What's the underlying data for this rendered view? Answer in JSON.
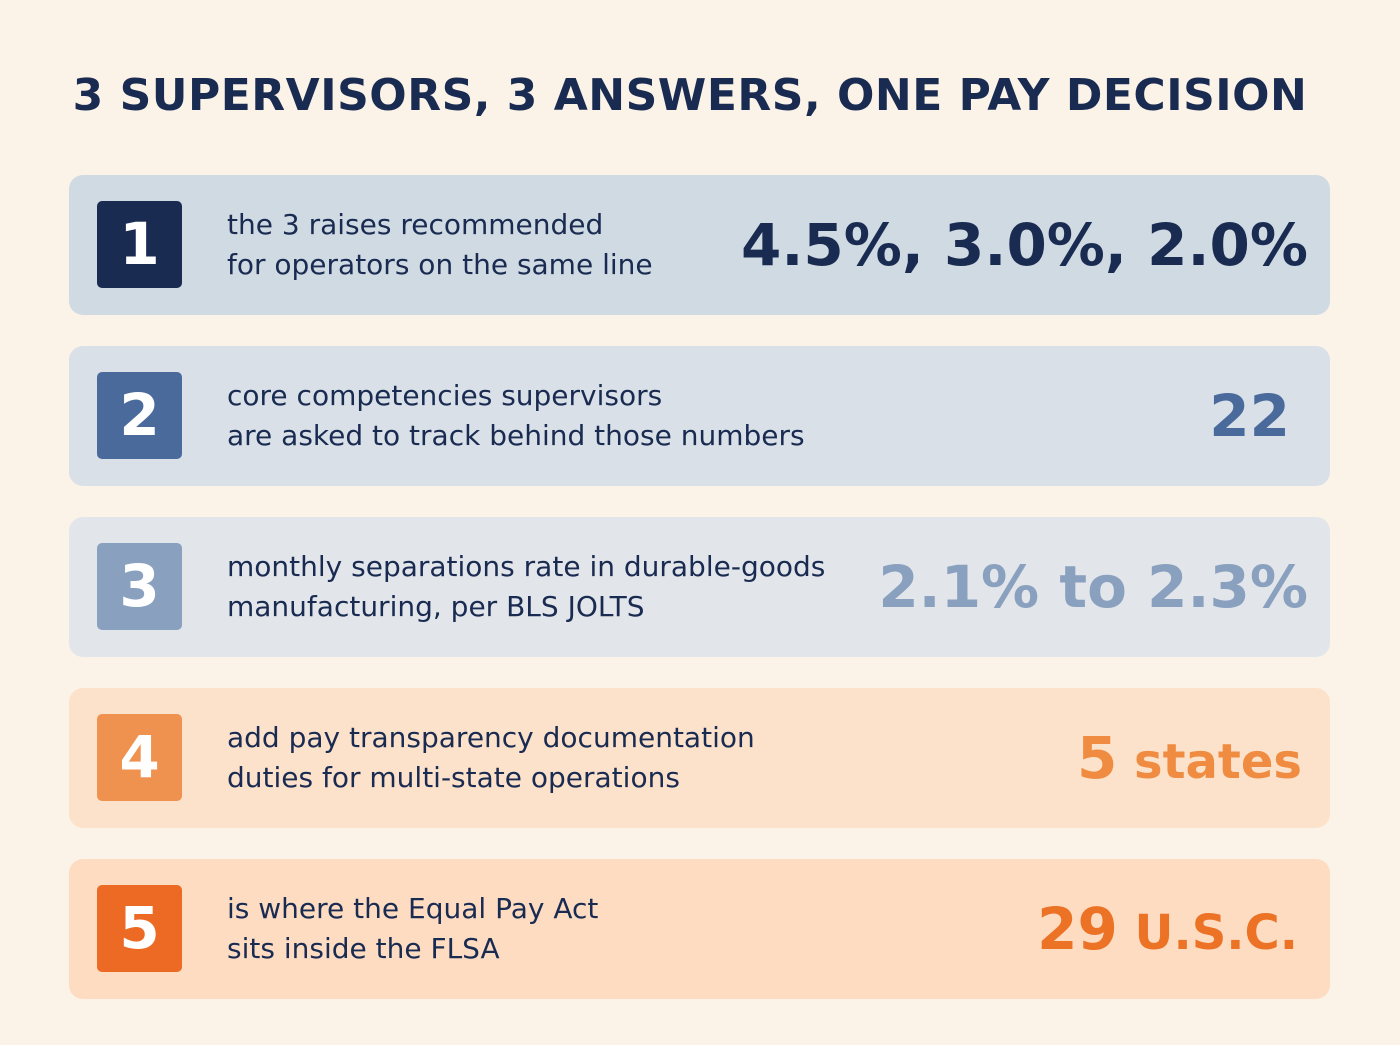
{
  "title": "3 SUPERVISORS, 3 ANSWERS, ONE PAY DECISION",
  "rows": [
    {
      "number": "1",
      "line1": "the 3 raises recommended",
      "line2": "for operators on the same line",
      "value": "4.5%, 3.0%, 2.0%",
      "value_unit": "",
      "badge_color": "#1a2b52",
      "value_color": "#1a2b52",
      "background": "#d0dae3"
    },
    {
      "number": "2",
      "line1": "core competencies supervisors",
      "line2": "are asked to track behind those numbers",
      "value": "22",
      "value_unit": "",
      "badge_color": "#4a6a9c",
      "value_color": "#4a6a9c",
      "background": "#d9e0e7"
    },
    {
      "number": "3",
      "line1": "monthly separations rate in durable-goods",
      "line2": "manufacturing, per BLS JOLTS",
      "value": "2.1% to 2.3%",
      "value_unit": "",
      "badge_color": "#8aa0bf",
      "value_color": "#8aa0bf",
      "background": "#e2e6ea"
    },
    {
      "number": "4",
      "line1": "add pay transparency documentation",
      "line2": "duties for multi-state operations",
      "value": "5",
      "value_unit": " states",
      "badge_color": "#f0924f",
      "value_color": "#ef8c42",
      "background": "#fde2cb"
    },
    {
      "number": "5",
      "line1": "is where the Equal Pay Act",
      "line2": "sits inside the FLSA",
      "value": "29",
      "value_unit": " U.S.C.",
      "badge_color": "#ec6a24",
      "value_color": "#ec7226",
      "background": "#fddcc2"
    }
  ]
}
